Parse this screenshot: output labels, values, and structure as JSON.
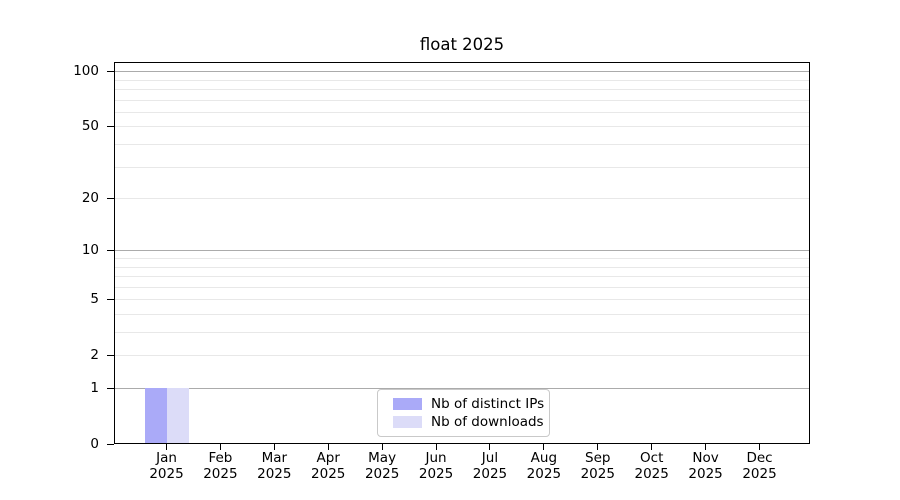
{
  "chart_data": {
    "type": "bar",
    "title": "float 2025",
    "categories": [
      "Jan 2025",
      "Feb 2025",
      "Mar 2025",
      "Apr 2025",
      "May 2025",
      "Jun 2025",
      "Jul 2025",
      "Aug 2025",
      "Sep 2025",
      "Oct 2025",
      "Nov 2025",
      "Dec 2025"
    ],
    "series": [
      {
        "name": "Nb of distinct IPs",
        "color": "#aaaaf8",
        "values": [
          1,
          0,
          0,
          0,
          0,
          0,
          0,
          0,
          0,
          0,
          0,
          0
        ]
      },
      {
        "name": "Nb of downloads",
        "color": "#dcdcf8",
        "values": [
          1,
          0,
          0,
          0,
          0,
          0,
          0,
          0,
          0,
          0,
          0,
          0
        ]
      }
    ],
    "xlabel": "",
    "ylabel": "",
    "yticks": [
      0,
      1,
      2,
      5,
      10,
      20,
      50,
      100
    ],
    "ylim": [
      0,
      111
    ],
    "yscale": "log1p",
    "grid": {
      "major_values": [
        1,
        10,
        100
      ],
      "minor_values": [
        2,
        3,
        4,
        5,
        6,
        7,
        8,
        9,
        20,
        30,
        40,
        50,
        60,
        70,
        80,
        90
      ],
      "major_color": "#ababab",
      "minor_color": "#e8e8e8"
    },
    "legend": {
      "position": "lower center inside"
    }
  }
}
